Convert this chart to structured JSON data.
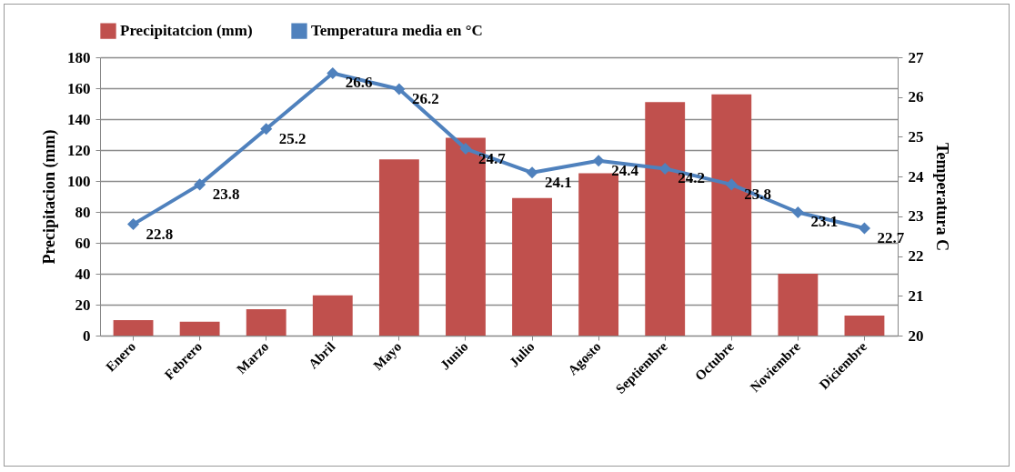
{
  "chart_data": {
    "type": "bar",
    "categories": [
      "Enero",
      "Febrero",
      "Marzo",
      "Abril",
      "Mayo",
      "Junio",
      "Julio",
      "Agosto",
      "Septiembre",
      "Octubre",
      "Noviembre",
      "Diciembre"
    ],
    "series": [
      {
        "name": "Precipitatcion (mm)",
        "color": "#c0504d",
        "values": [
          10,
          9,
          17,
          26,
          114,
          128,
          89,
          105,
          151,
          156,
          40,
          13
        ]
      },
      {
        "name": "Temperatura media en °C",
        "type": "line",
        "axis": "y2",
        "color": "#4f81bd",
        "marker": "diamond",
        "values": [
          22.8,
          23.8,
          25.2,
          26.6,
          26.2,
          24.7,
          24.1,
          24.4,
          24.2,
          23.8,
          23.1,
          22.7
        ],
        "value_labels": [
          "22.8",
          "23.8",
          "25.2",
          "26.6",
          "26.2",
          "24.7",
          "24.1",
          "24.4",
          "24.2",
          "23.8",
          "23.1",
          "22.7"
        ]
      }
    ],
    "ylabel": "Precipitacion (mm)",
    "y2label": "Temperatura  C",
    "ylim": [
      0,
      180
    ],
    "yticks": [
      0,
      20,
      40,
      60,
      80,
      100,
      120,
      140,
      160,
      180
    ],
    "y2lim": [
      20,
      27
    ],
    "y2ticks": [
      20,
      21,
      22,
      23,
      24,
      25,
      26,
      27
    ],
    "grid": "y",
    "legend": "top"
  }
}
